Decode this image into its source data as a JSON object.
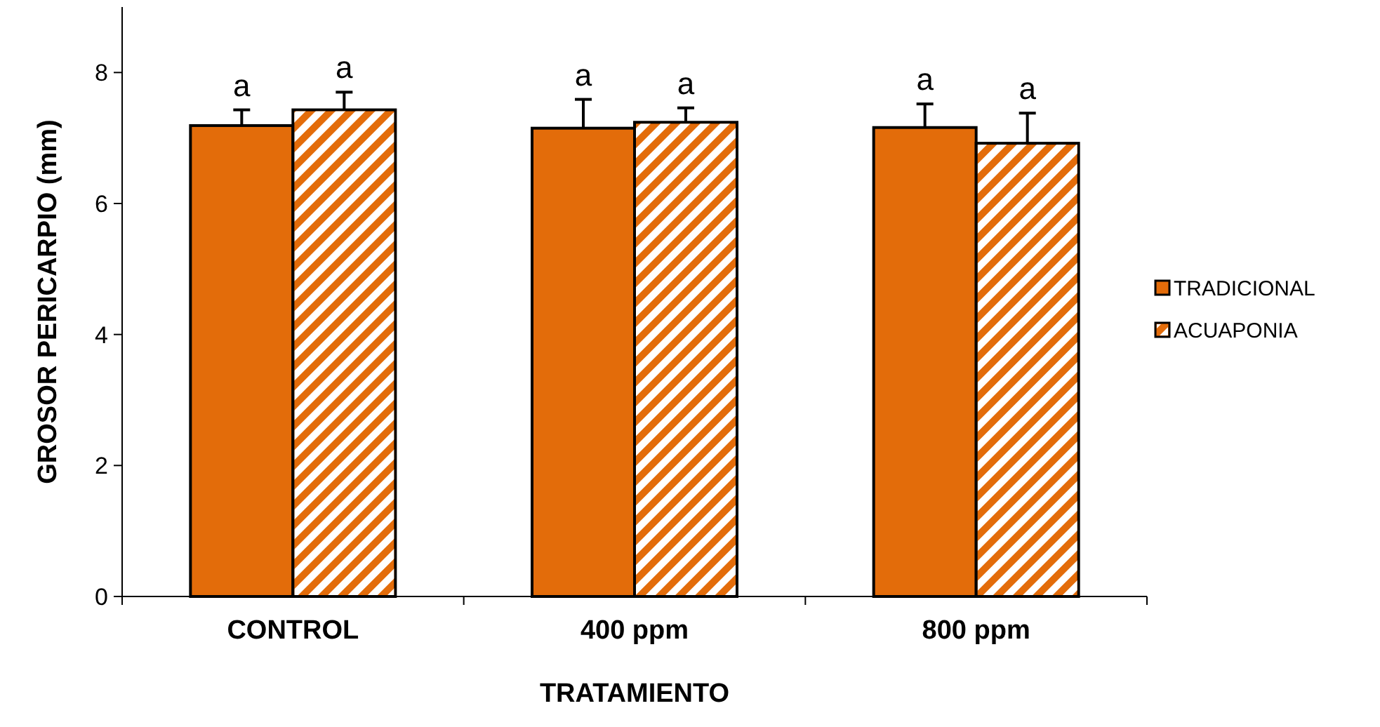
{
  "chart_data": {
    "type": "bar",
    "xlabel": "TRATAMIENTO",
    "ylabel": "GROSOR PERICARPIO (mm)",
    "categories": [
      "CONTROL",
      "400 ppm",
      "800 ppm"
    ],
    "series": [
      {
        "name": "TRADICIONAL",
        "color": "#e36c0a",
        "values": [
          7.19,
          7.15,
          7.16
        ],
        "errors": [
          [
            7.19,
            7.43
          ],
          [
            7.15,
            7.59
          ],
          [
            7.16,
            7.52
          ]
        ]
      },
      {
        "name": "ACUAPONIA",
        "color": "#e36c0a",
        "values": [
          7.43,
          7.24,
          6.92
        ],
        "errors": [
          [
            7.43,
            7.7
          ],
          [
            7.24,
            7.46
          ],
          [
            6.92,
            7.38
          ]
        ]
      }
    ],
    "ylim": [
      0,
      9
    ],
    "yticks": [
      0,
      2,
      4,
      6,
      8
    ],
    "grid": false,
    "legend": "right",
    "annotations": [
      "a",
      "a",
      "a",
      "a",
      "a",
      "a"
    ]
  }
}
